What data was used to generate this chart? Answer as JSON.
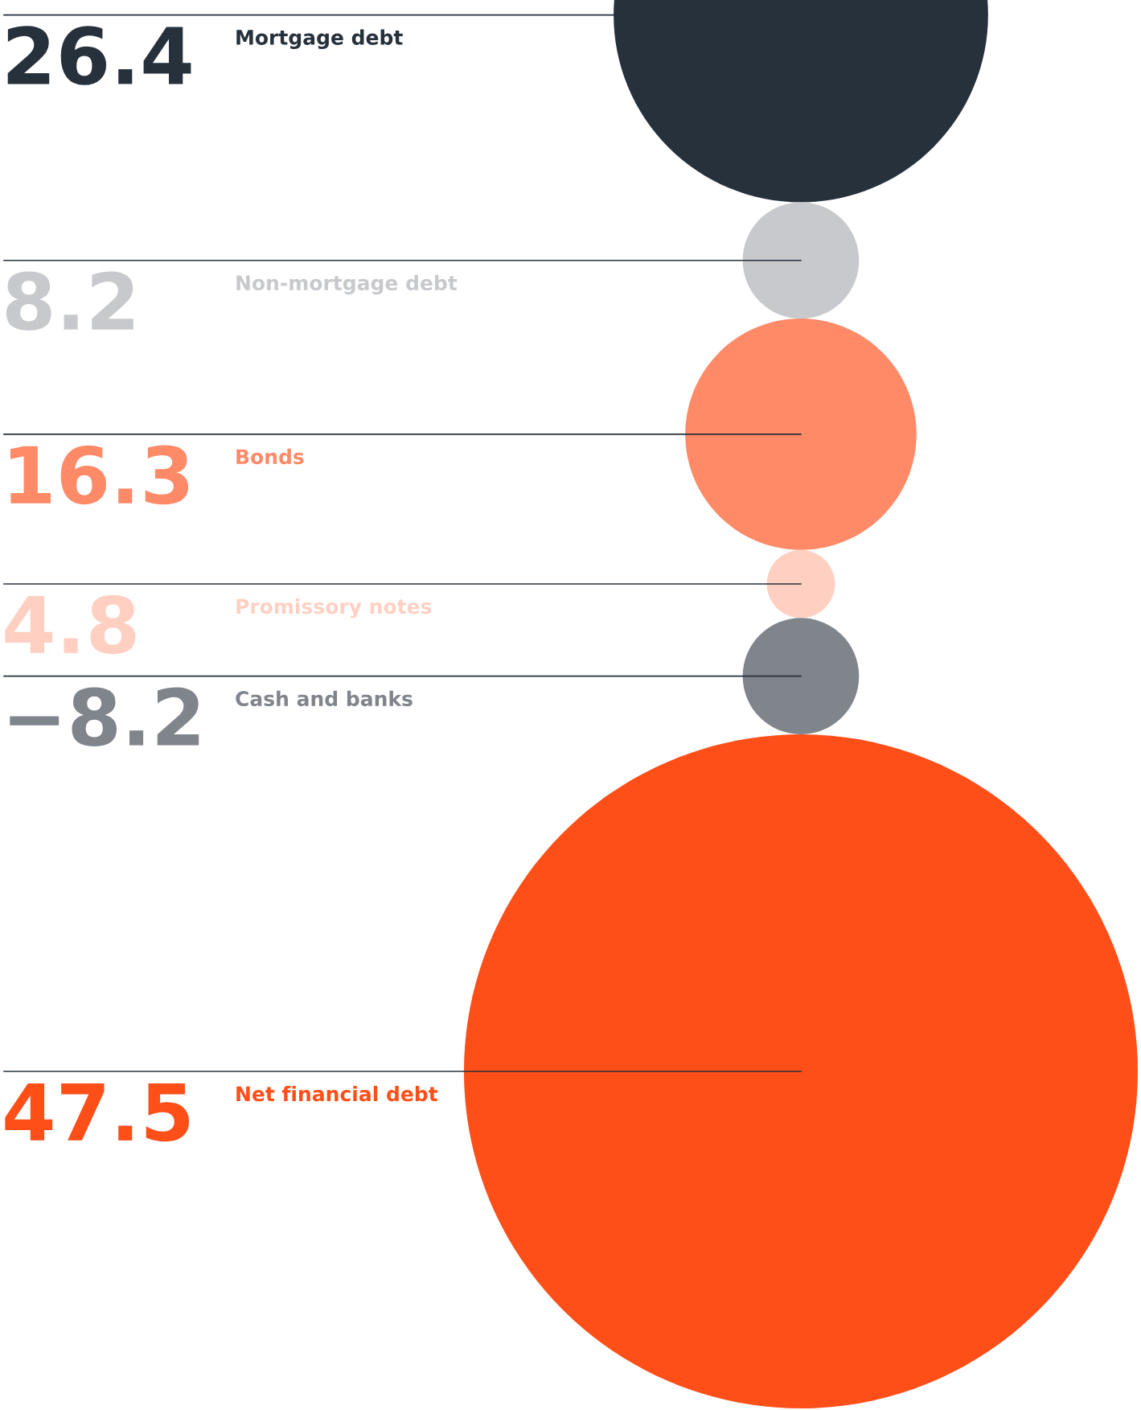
{
  "chart_data": {
    "type": "other",
    "categories": [
      "Mortgage debt",
      "Non-mortgage debt",
      "Bonds",
      "Promissory notes",
      "Cash and banks",
      "Net financial debt"
    ],
    "values": [
      26.4,
      8.2,
      16.3,
      4.8,
      -8.2,
      47.5
    ],
    "value_labels": [
      "26.4",
      "8.2",
      "16.3",
      "4.8",
      "−8.2",
      "47.5"
    ],
    "colors": [
      "#27313c",
      "#c8c9cc",
      "#ff8a68",
      "#ffd0c2",
      "#80848b",
      "#ff4f19"
    ]
  }
}
